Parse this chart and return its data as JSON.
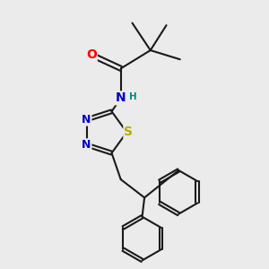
{
  "bg_color": "#ebebeb",
  "bond_color": "#1a1a1a",
  "bond_width": 1.5,
  "atom_colors": {
    "O": "#ff0000",
    "N": "#0000cc",
    "S": "#bbaa00",
    "H": "#008888",
    "C": "#1a1a1a"
  },
  "font_size_atom": 9,
  "font_size_H": 7.5
}
